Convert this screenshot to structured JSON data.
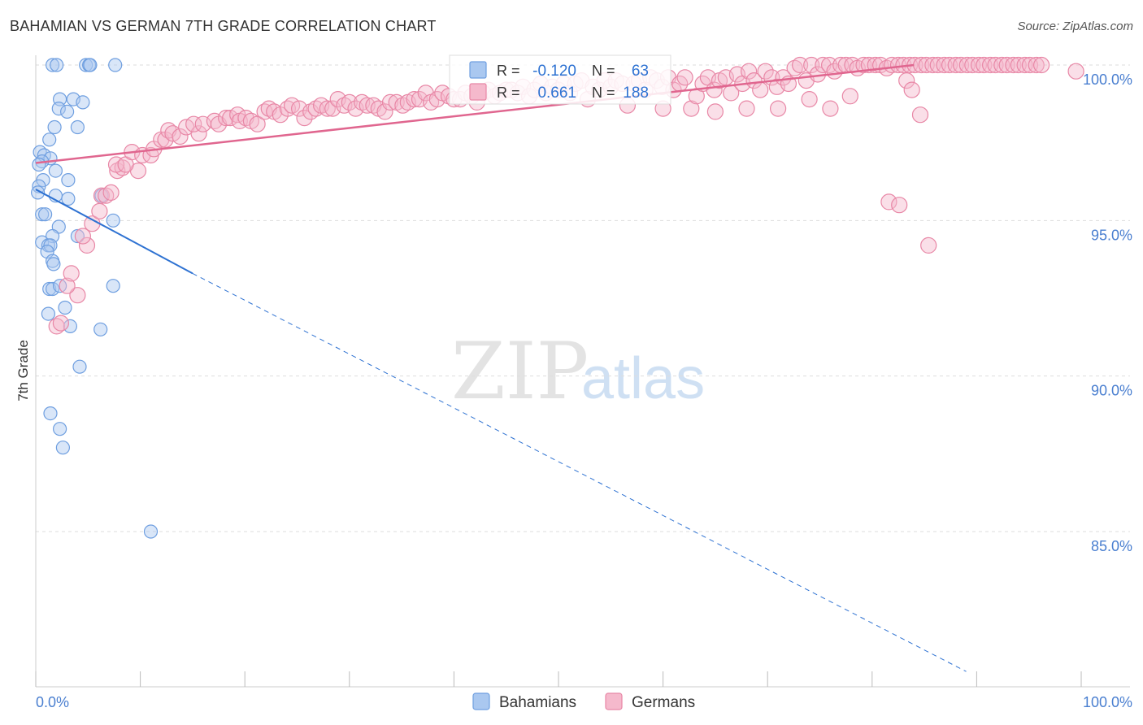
{
  "chart_data": {
    "type": "scatter",
    "title": "BAHAMIAN VS GERMAN 7TH GRADE CORRELATION CHART",
    "source": "Source: ZipAtlas.com",
    "xlabel": "",
    "ylabel": "7th Grade",
    "xlim": [
      0,
      100
    ],
    "ylim": [
      80.5,
      100.5
    ],
    "x_tick_labels": {
      "left": "0.0%",
      "right": "100.0%"
    },
    "y_ticks": [
      {
        "value": 100,
        "label": "100.0%"
      },
      {
        "value": 95,
        "label": "95.0%"
      },
      {
        "value": 90,
        "label": "90.0%"
      },
      {
        "value": 85,
        "label": "85.0%"
      }
    ],
    "grid": true,
    "legend_position": "bottom-center",
    "watermark": "ZIPatlas",
    "stats": [
      {
        "series": "Bahamians",
        "r_label": "R =",
        "r_value": "-0.120",
        "n_label": "N =",
        "n_value": "63"
      },
      {
        "series": "Germans",
        "r_label": "R =",
        "r_value": "0.661",
        "n_label": "N =",
        "n_value": "188"
      }
    ],
    "series": [
      {
        "name": "Bahamians",
        "color": "#6f9fe0",
        "fill": "#aac8f0",
        "line_color": "#2e72d2",
        "trend": {
          "x0": 0,
          "y0": 96.0,
          "x1": 15,
          "y1": 93.3,
          "dash_to_x": 89,
          "dash_to_y": 80.5
        },
        "points": [
          [
            1.6,
            100
          ],
          [
            2,
            100
          ],
          [
            4.8,
            100
          ],
          [
            5.1,
            100
          ],
          [
            5.2,
            100
          ],
          [
            7.6,
            100
          ],
          [
            2.3,
            98.9
          ],
          [
            3.6,
            98.9
          ],
          [
            4.5,
            98.8
          ],
          [
            2.2,
            98.6
          ],
          [
            3,
            98.5
          ],
          [
            1.8,
            98
          ],
          [
            4,
            98
          ],
          [
            1.3,
            97.6
          ],
          [
            0.4,
            97.2
          ],
          [
            0.8,
            97.1
          ],
          [
            1.4,
            97
          ],
          [
            0.6,
            96.9
          ],
          [
            0.3,
            96.8
          ],
          [
            1.9,
            96.6
          ],
          [
            0.7,
            96.3
          ],
          [
            3.1,
            96.3
          ],
          [
            0.3,
            96.1
          ],
          [
            0.2,
            95.9
          ],
          [
            1.9,
            95.8
          ],
          [
            3.1,
            95.7
          ],
          [
            6.3,
            95.8
          ],
          [
            0.6,
            95.2
          ],
          [
            0.9,
            95.2
          ],
          [
            7.4,
            95
          ],
          [
            2.2,
            94.8
          ],
          [
            1.6,
            94.5
          ],
          [
            4,
            94.5
          ],
          [
            0.6,
            94.3
          ],
          [
            1.2,
            94.2
          ],
          [
            1.4,
            94.2
          ],
          [
            1.1,
            94
          ],
          [
            1.6,
            93.7
          ],
          [
            1.7,
            93.6
          ],
          [
            7.4,
            92.9
          ],
          [
            1.3,
            92.8
          ],
          [
            1.6,
            92.8
          ],
          [
            2.3,
            92.9
          ],
          [
            2.8,
            92.2
          ],
          [
            1.2,
            92
          ],
          [
            3.3,
            91.6
          ],
          [
            6.2,
            91.5
          ],
          [
            4.2,
            90.3
          ],
          [
            1.4,
            88.8
          ],
          [
            2.3,
            88.3
          ],
          [
            2.6,
            87.7
          ],
          [
            11,
            85
          ]
        ]
      },
      {
        "name": "Germans",
        "color": "#e887a6",
        "fill": "#f5b9cc",
        "line_color": "#e0668f",
        "trend": {
          "x0": 0,
          "y0": 96.85,
          "x1": 84,
          "y1": 100
        },
        "points": [
          [
            2,
            91.6
          ],
          [
            2.4,
            91.7
          ],
          [
            4,
            92.6
          ],
          [
            3,
            92.9
          ],
          [
            3.4,
            93.3
          ],
          [
            4.9,
            94.2
          ],
          [
            4.5,
            94.5
          ],
          [
            5.4,
            94.9
          ],
          [
            6.1,
            95.3
          ],
          [
            6.3,
            95.8
          ],
          [
            6.7,
            95.8
          ],
          [
            7.2,
            95.9
          ],
          [
            7.8,
            96.6
          ],
          [
            8.3,
            96.7
          ],
          [
            9.8,
            96.6
          ],
          [
            7.7,
            96.8
          ],
          [
            8.6,
            96.8
          ],
          [
            9.2,
            97.2
          ],
          [
            10.2,
            97.1
          ],
          [
            11,
            97.1
          ],
          [
            11.3,
            97.3
          ],
          [
            12,
            97.6
          ],
          [
            12.4,
            97.6
          ],
          [
            12.7,
            97.9
          ],
          [
            13.1,
            97.8
          ],
          [
            13.8,
            97.7
          ],
          [
            14.4,
            98
          ],
          [
            15.6,
            97.8
          ],
          [
            15.1,
            98.1
          ],
          [
            16,
            98.1
          ],
          [
            17.1,
            98.2
          ],
          [
            17.5,
            98.1
          ],
          [
            18.2,
            98.3
          ],
          [
            18.6,
            98.3
          ],
          [
            19.3,
            98.4
          ],
          [
            19.5,
            98.2
          ],
          [
            20.1,
            98.3
          ],
          [
            20.6,
            98.2
          ],
          [
            21.2,
            98.1
          ],
          [
            21.9,
            98.5
          ],
          [
            22.3,
            98.6
          ],
          [
            22.8,
            98.5
          ],
          [
            23.4,
            98.4
          ],
          [
            24.1,
            98.6
          ],
          [
            24.5,
            98.7
          ],
          [
            25.2,
            98.6
          ],
          [
            25.7,
            98.3
          ],
          [
            26.3,
            98.5
          ],
          [
            26.8,
            98.6
          ],
          [
            27.3,
            98.7
          ],
          [
            27.9,
            98.6
          ],
          [
            28.4,
            98.6
          ],
          [
            28.9,
            98.9
          ],
          [
            29.5,
            98.7
          ],
          [
            30,
            98.8
          ],
          [
            30.6,
            98.6
          ],
          [
            31.2,
            98.8
          ],
          [
            31.7,
            98.7
          ],
          [
            32.3,
            98.7
          ],
          [
            32.8,
            98.6
          ],
          [
            33.4,
            98.5
          ],
          [
            33.9,
            98.8
          ],
          [
            34.5,
            98.8
          ],
          [
            35.1,
            98.7
          ],
          [
            35.6,
            98.8
          ],
          [
            36.2,
            98.9
          ],
          [
            36.7,
            98.9
          ],
          [
            37.3,
            99.1
          ],
          [
            37.8,
            98.8
          ],
          [
            38.4,
            98.9
          ],
          [
            38.9,
            99.1
          ],
          [
            39.5,
            99
          ],
          [
            40,
            98.9
          ],
          [
            40.6,
            98.9
          ],
          [
            41.1,
            99.1
          ],
          [
            41.7,
            99
          ],
          [
            42.2,
            98.8
          ],
          [
            42.8,
            99.1
          ],
          [
            43.3,
            99.2
          ],
          [
            43.9,
            99
          ],
          [
            44.4,
            99.1
          ],
          [
            45,
            99.2
          ],
          [
            45.5,
            99.2
          ],
          [
            46.1,
            99.1
          ],
          [
            46.6,
            99.3
          ],
          [
            47.2,
            99
          ],
          [
            47.7,
            99.2
          ],
          [
            48.3,
            99.4
          ],
          [
            48.8,
            99.1
          ],
          [
            49.4,
            99.3
          ],
          [
            50,
            99.2
          ],
          [
            50.5,
            99.4
          ],
          [
            51.1,
            99.1
          ],
          [
            51.6,
            99.4
          ],
          [
            52.2,
            99.5
          ],
          [
            52.8,
            98.9
          ],
          [
            53.3,
            99.3
          ],
          [
            53.9,
            99.2
          ],
          [
            54.4,
            99.5
          ],
          [
            55,
            99.3
          ],
          [
            55.5,
            99.5
          ],
          [
            56.1,
            99.4
          ],
          [
            56.6,
            98.7
          ],
          [
            57.2,
            99.4
          ],
          [
            57.7,
            99.5
          ],
          [
            58.3,
            99.2
          ],
          [
            58.8,
            99.6
          ],
          [
            59.4,
            99.5
          ],
          [
            59.9,
            99.3
          ],
          [
            60.5,
            99.6
          ],
          [
            61,
            99.2
          ],
          [
            61.6,
            99.4
          ],
          [
            62.1,
            99.6
          ],
          [
            62.7,
            98.6
          ],
          [
            63.2,
            99
          ],
          [
            63.8,
            99.4
          ],
          [
            64.3,
            99.6
          ],
          [
            64.9,
            99.2
          ],
          [
            65.4,
            99.5
          ],
          [
            66,
            99.6
          ],
          [
            66.5,
            99.1
          ],
          [
            67.1,
            99.7
          ],
          [
            67.6,
            99.4
          ],
          [
            68.2,
            99.8
          ],
          [
            68.7,
            99.5
          ],
          [
            69.3,
            99.2
          ],
          [
            69.8,
            99.8
          ],
          [
            70.4,
            99.6
          ],
          [
            70.9,
            99.3
          ],
          [
            71.5,
            99.6
          ],
          [
            72,
            99.4
          ],
          [
            72.6,
            99.9
          ],
          [
            73.1,
            100
          ],
          [
            73.7,
            99.5
          ],
          [
            74.2,
            100
          ],
          [
            74.8,
            99.7
          ],
          [
            75.3,
            100
          ],
          [
            75.9,
            100
          ],
          [
            76.4,
            99.8
          ],
          [
            77,
            100
          ],
          [
            77.5,
            100
          ],
          [
            78.1,
            100
          ],
          [
            78.6,
            99.9
          ],
          [
            79.2,
            100
          ],
          [
            79.7,
            100
          ],
          [
            80.3,
            100
          ],
          [
            80.8,
            100
          ],
          [
            81.4,
            99.9
          ],
          [
            81.9,
            100
          ],
          [
            82.5,
            100
          ],
          [
            83,
            100
          ],
          [
            83.6,
            100
          ],
          [
            84.1,
            100
          ],
          [
            84.7,
            100
          ],
          [
            85.2,
            100
          ],
          [
            85.8,
            100
          ],
          [
            86.3,
            100
          ],
          [
            86.9,
            100
          ],
          [
            87.4,
            100
          ],
          [
            88,
            100
          ],
          [
            88.5,
            100
          ],
          [
            89.1,
            100
          ],
          [
            89.6,
            100
          ],
          [
            90.2,
            100
          ],
          [
            90.7,
            100
          ],
          [
            91.3,
            100
          ],
          [
            91.8,
            100
          ],
          [
            92.4,
            100
          ],
          [
            92.9,
            100
          ],
          [
            93.5,
            100
          ],
          [
            94,
            100
          ],
          [
            94.6,
            100
          ],
          [
            95.1,
            100
          ],
          [
            95.7,
            100
          ],
          [
            96.2,
            100
          ],
          [
            99.5,
            99.8
          ],
          [
            77.9,
            99
          ],
          [
            81.6,
            95.6
          ],
          [
            82.6,
            95.5
          ],
          [
            83.3,
            99.5
          ],
          [
            83.8,
            99.2
          ],
          [
            84.6,
            98.4
          ],
          [
            85.4,
            94.2
          ],
          [
            60,
            98.6
          ],
          [
            65,
            98.5
          ],
          [
            68,
            98.6
          ],
          [
            71,
            98.6
          ],
          [
            74,
            98.9
          ],
          [
            76,
            98.6
          ]
        ]
      }
    ]
  },
  "legend": {
    "items": [
      {
        "label": "Bahamians"
      },
      {
        "label": "Germans"
      }
    ]
  }
}
